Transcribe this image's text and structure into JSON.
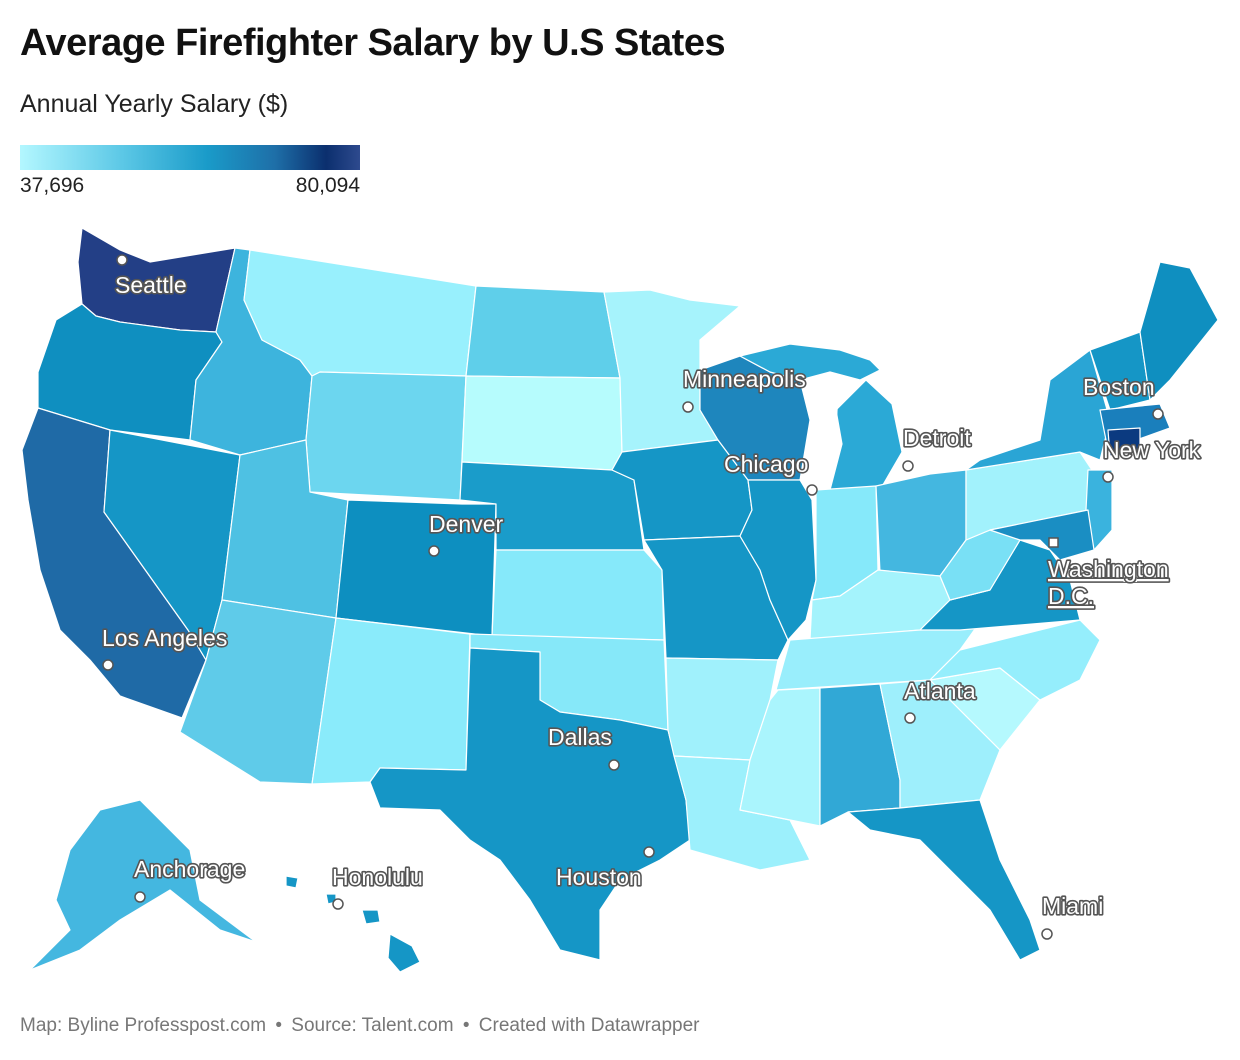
{
  "title": "Average Firefighter Salary by U.S States",
  "subtitle": "Annual Yearly Salary ($)",
  "legend": {
    "min_label": "37,696",
    "max_label": "80,094",
    "min_value": 37696,
    "max_value": 80094,
    "color_stops": [
      "#b3f7ff",
      "#5cc8e6",
      "#1a9bc9",
      "#0a5f99",
      "#0b2f6e",
      "#2e4a8e"
    ]
  },
  "cities": [
    {
      "name": "Seattle"
    },
    {
      "name": "Los Angeles"
    },
    {
      "name": "Denver"
    },
    {
      "name": "Minneapolis"
    },
    {
      "name": "Chicago"
    },
    {
      "name": "Detroit"
    },
    {
      "name": "Boston"
    },
    {
      "name": "New York"
    },
    {
      "name": "Washington D.C.",
      "line1": "Washington",
      "line2": "D.C."
    },
    {
      "name": "Atlanta"
    },
    {
      "name": "Dallas"
    },
    {
      "name": "Houston"
    },
    {
      "name": "Miami"
    },
    {
      "name": "Anchorage"
    },
    {
      "name": "Honolulu"
    }
  ],
  "footer": {
    "map_credit": "Map: Byline Professpost.com",
    "separator": "•",
    "source": "Source: Talent.com",
    "created": "Created with Datawrapper"
  }
}
